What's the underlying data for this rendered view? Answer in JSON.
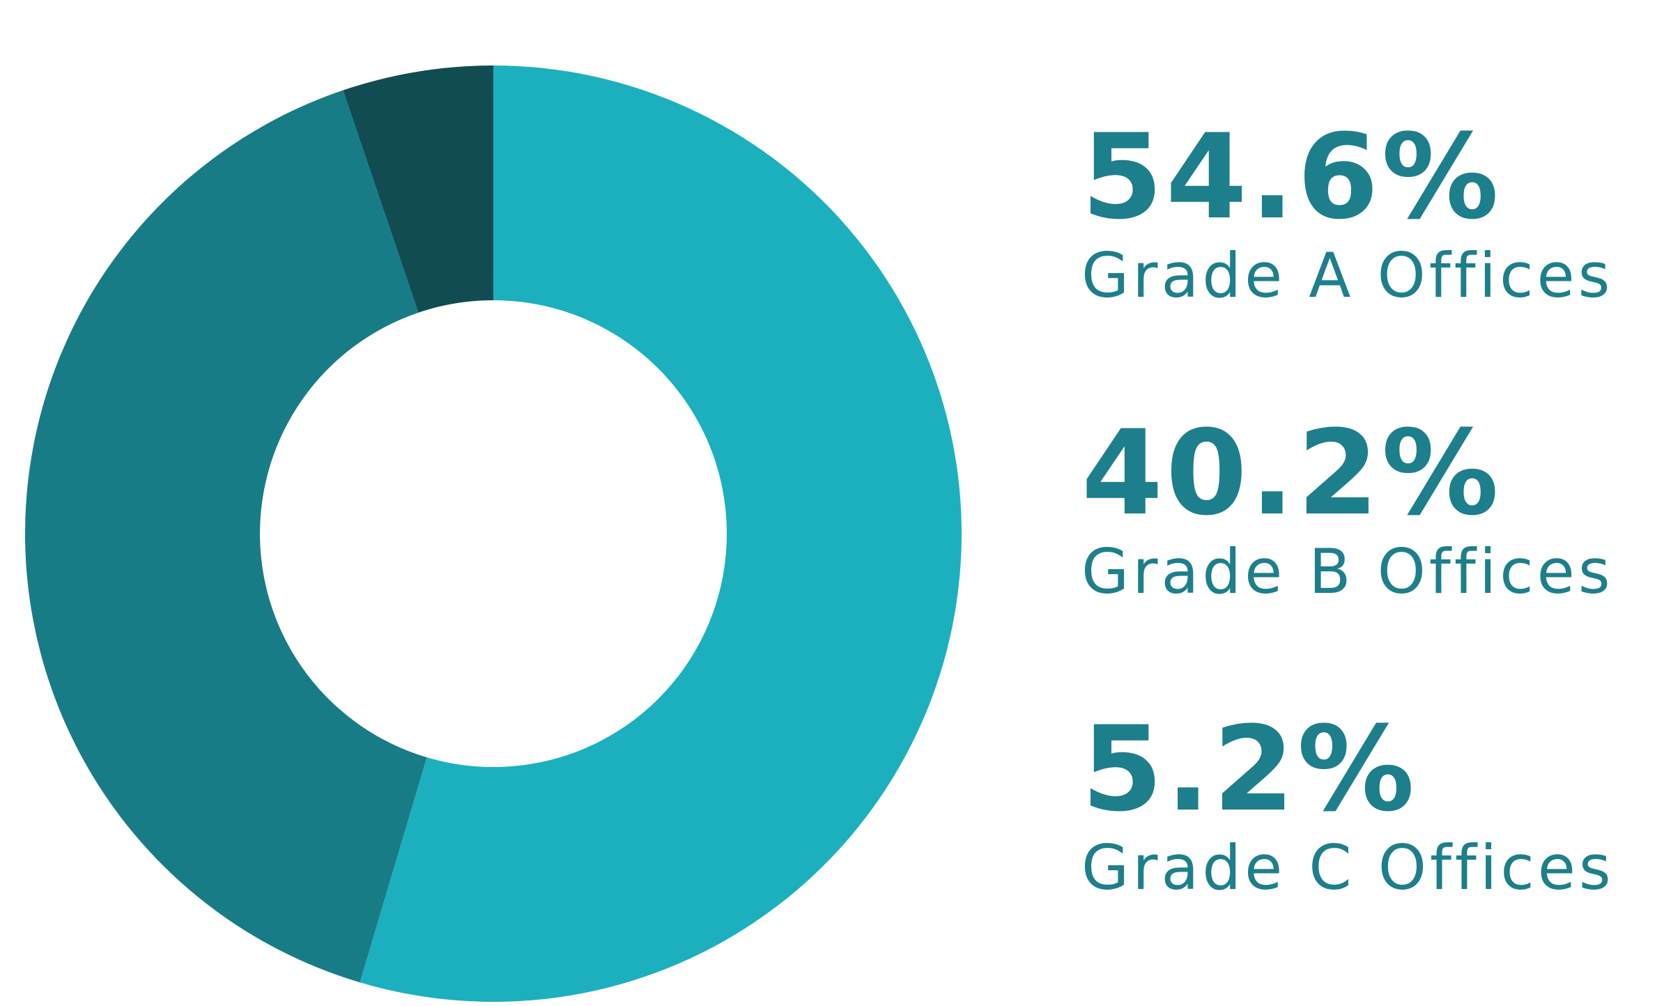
{
  "chart_data": {
    "type": "pie",
    "donut": true,
    "categories": [
      "Grade A Offices",
      "Grade B Offices",
      "Grade C Offices"
    ],
    "values": [
      54.6,
      40.2,
      5.2
    ],
    "value_labels": [
      "54.6%",
      "40.2%",
      "5.2%"
    ],
    "colors": [
      "#1cb0be",
      "#187c87",
      "#114c52"
    ],
    "legend_position": "right",
    "start_angle": "top, clockwise"
  }
}
